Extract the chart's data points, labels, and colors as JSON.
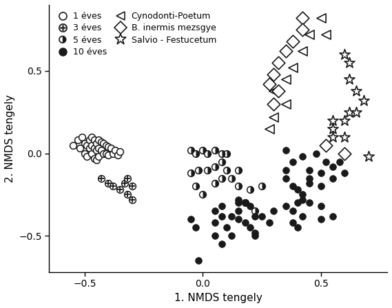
{
  "xlabel": "1. NMDS tengely",
  "ylabel": "2. NMDS tengely",
  "xlim": [
    -0.65,
    0.78
  ],
  "ylim": [
    -0.72,
    0.9
  ],
  "xticks": [
    -0.5,
    0.0,
    0.5
  ],
  "yticks": [
    -0.5,
    0.0,
    0.5
  ],
  "g1_x": [
    -0.55,
    -0.53,
    -0.52,
    -0.51,
    -0.5,
    -0.5,
    -0.49,
    -0.49,
    -0.48,
    -0.48,
    -0.47,
    -0.47,
    -0.47,
    -0.46,
    -0.46,
    -0.46,
    -0.45,
    -0.45,
    -0.45,
    -0.44,
    -0.44,
    -0.44,
    -0.43,
    -0.43,
    -0.42,
    -0.42,
    -0.41,
    -0.41,
    -0.4,
    -0.4,
    -0.39,
    -0.38,
    -0.37,
    -0.36,
    -0.35
  ],
  "g1_y": [
    0.05,
    0.08,
    0.03,
    0.1,
    0.06,
    0.0,
    0.05,
    -0.02,
    0.08,
    0.03,
    0.1,
    0.05,
    0.0,
    0.08,
    0.03,
    -0.03,
    0.06,
    0.02,
    -0.04,
    0.08,
    0.03,
    -0.02,
    0.07,
    0.02,
    0.06,
    0.0,
    0.05,
    0.0,
    0.04,
    -0.01,
    0.03,
    0.0,
    0.02,
    -0.01,
    0.01
  ],
  "g2_x": [
    -0.43,
    -0.4,
    -0.38,
    -0.35,
    -0.33,
    -0.32,
    -0.3,
    -0.32,
    -0.3
  ],
  "g2_y": [
    -0.15,
    -0.18,
    -0.2,
    -0.22,
    -0.18,
    -0.15,
    -0.2,
    -0.25,
    -0.28
  ],
  "g3_x": [
    -0.05,
    -0.03,
    0.0,
    0.02,
    0.05,
    0.08,
    0.1,
    0.08,
    0.05,
    0.02,
    -0.02,
    -0.05,
    -0.03,
    0.0,
    0.1,
    0.15,
    0.12,
    0.08,
    0.05,
    0.15,
    0.2,
    0.25,
    0.18,
    0.22
  ],
  "g3_y": [
    0.02,
    0.0,
    0.02,
    0.0,
    0.02,
    0.0,
    0.0,
    -0.05,
    -0.08,
    -0.1,
    -0.1,
    -0.12,
    -0.2,
    -0.25,
    -0.1,
    -0.1,
    -0.15,
    -0.15,
    -0.18,
    -0.2,
    -0.22,
    -0.2,
    -0.3,
    -0.35
  ],
  "g4_x": [
    -0.05,
    -0.03,
    0.05,
    0.08,
    0.05,
    0.08,
    0.15,
    0.2,
    0.15,
    0.18,
    0.12,
    0.22,
    0.28,
    0.22,
    0.15,
    0.3,
    0.12,
    0.18,
    0.25,
    0.1,
    0.05,
    0.08,
    -0.02,
    0.15,
    0.2,
    0.22
  ],
  "g4_y": [
    -0.4,
    -0.45,
    -0.35,
    -0.32,
    -0.42,
    -0.38,
    -0.3,
    -0.32,
    -0.4,
    -0.3,
    -0.5,
    -0.48,
    -0.42,
    -0.38,
    -0.28,
    -0.35,
    -0.38,
    -0.42,
    -0.38,
    -0.45,
    -0.5,
    -0.55,
    -0.65,
    -0.35,
    -0.45,
    -0.5
  ],
  "g5_x": [
    0.35,
    0.42,
    0.48,
    0.52,
    0.55,
    0.58,
    0.45,
    0.5,
    0.55,
    0.6,
    0.45,
    0.5,
    0.4,
    0.35,
    0.38,
    0.42,
    0.45,
    0.5,
    0.4,
    0.35,
    0.38,
    0.42,
    0.35,
    0.38,
    0.42,
    0.45,
    0.38,
    0.4,
    0.5,
    0.55
  ],
  "g5_y": [
    0.02,
    -0.02,
    0.0,
    -0.05,
    -0.08,
    -0.05,
    -0.1,
    -0.12,
    -0.15,
    -0.12,
    -0.18,
    -0.2,
    -0.22,
    -0.15,
    -0.2,
    -0.28,
    -0.3,
    -0.32,
    -0.3,
    -0.32,
    -0.35,
    -0.38,
    -0.1,
    -0.05,
    -0.25,
    -0.15,
    -0.42,
    -0.45,
    -0.4,
    -0.38
  ],
  "tri_x": [
    0.5,
    0.52,
    0.45,
    0.42,
    0.38,
    0.35,
    0.3,
    0.35,
    0.3,
    0.28
  ],
  "tri_y": [
    0.82,
    0.72,
    0.72,
    0.62,
    0.52,
    0.45,
    0.38,
    0.3,
    0.22,
    0.15
  ],
  "dia_x": [
    0.42,
    0.42,
    0.38,
    0.35,
    0.32,
    0.3,
    0.28,
    0.32,
    0.3,
    0.52,
    0.6
  ],
  "dia_y": [
    0.82,
    0.75,
    0.68,
    0.62,
    0.55,
    0.48,
    0.42,
    0.38,
    0.3,
    0.05,
    0.0
  ],
  "star_x": [
    0.6,
    0.62,
    0.62,
    0.65,
    0.68,
    0.62,
    0.65,
    0.6,
    0.55,
    0.55,
    0.55,
    0.6,
    0.7
  ],
  "star_y": [
    0.6,
    0.55,
    0.45,
    0.38,
    0.32,
    0.25,
    0.25,
    0.2,
    0.2,
    0.15,
    0.1,
    0.1,
    -0.02
  ],
  "marker_color": "#1a1a1a",
  "bg_color": "#ffffff",
  "fontsize": 11,
  "legend_fontsize": 9
}
